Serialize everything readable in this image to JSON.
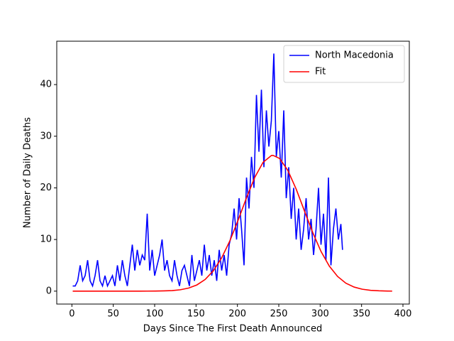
{
  "chart_data": {
    "type": "line",
    "xlabel": "Days Since The First Death Announced",
    "ylabel": "Number of Daily Deaths",
    "xlim": [
      -18.3,
      407.7
    ],
    "ylim": [
      -2.5,
      48.4
    ],
    "xticks": [
      0,
      50,
      100,
      150,
      200,
      250,
      300,
      350,
      400
    ],
    "yticks": [
      0,
      10,
      20,
      30,
      40
    ],
    "legend": "upper right",
    "series": [
      {
        "name": "North Macedonia",
        "color": "#0000ff",
        "x": [
          1,
          4,
          7,
          10,
          13,
          16,
          19,
          22,
          25,
          28,
          31,
          34,
          37,
          40,
          43,
          46,
          49,
          52,
          55,
          58,
          61,
          64,
          67,
          70,
          73,
          76,
          79,
          82,
          85,
          88,
          91,
          94,
          97,
          100,
          103,
          106,
          109,
          112,
          115,
          118,
          121,
          124,
          127,
          130,
          133,
          136,
          139,
          142,
          145,
          148,
          151,
          154,
          157,
          160,
          163,
          166,
          169,
          172,
          175,
          178,
          181,
          184,
          187,
          190,
          193,
          196,
          199,
          202,
          205,
          208,
          211,
          214,
          217,
          220,
          223,
          226,
          229,
          232,
          235,
          238,
          241,
          244,
          247,
          250,
          253,
          256,
          259,
          262,
          265,
          268,
          271,
          274,
          277,
          280,
          283,
          286,
          289,
          292,
          295,
          298,
          301,
          304,
          307,
          310,
          313,
          316,
          319,
          322,
          325,
          327
        ],
        "values": [
          1,
          1,
          2,
          5,
          2,
          3,
          6,
          2,
          1,
          3,
          6,
          2,
          1,
          3,
          1,
          2,
          3,
          1,
          5,
          2,
          6,
          3,
          1,
          5,
          9,
          4,
          8,
          5,
          7,
          6,
          15,
          4,
          8,
          3,
          5,
          7,
          10,
          4,
          6,
          3,
          2,
          6,
          3,
          1,
          4,
          5,
          3,
          1,
          7,
          2,
          4,
          6,
          3,
          9,
          4,
          7,
          3,
          6,
          2,
          8,
          4,
          7,
          3,
          9,
          11,
          16,
          10,
          18,
          12,
          5,
          22,
          16,
          26,
          20,
          38,
          27,
          39,
          24,
          35,
          28,
          33,
          46,
          26,
          31,
          22,
          35,
          18,
          24,
          14,
          20,
          10,
          16,
          8,
          12,
          18,
          10,
          14,
          7,
          12,
          20,
          9,
          15,
          6,
          22,
          5,
          12,
          16,
          10,
          13,
          8
        ]
      },
      {
        "name": "Fit",
        "color": "#ff0000",
        "x": [
          1,
          11,
          21,
          31,
          41,
          51,
          61,
          71,
          81,
          91,
          101,
          111,
          121,
          131,
          141,
          151,
          161,
          171,
          181,
          191,
          201,
          211,
          221,
          231,
          241,
          243,
          251,
          261,
          271,
          281,
          291,
          301,
          311,
          321,
          331,
          341,
          351,
          361,
          371,
          381,
          387
        ],
        "values": [
          0,
          0,
          0,
          0,
          0,
          0,
          0,
          0,
          0,
          0.01,
          0.02,
          0.05,
          0.11,
          0.27,
          0.59,
          1.2,
          2.26,
          3.96,
          6.46,
          9.79,
          13.81,
          18.09,
          22.04,
          24.95,
          26.26,
          26.3,
          25.69,
          23.36,
          19.76,
          15.53,
          11.35,
          7.69,
          4.86,
          2.85,
          1.55,
          0.79,
          0.37,
          0.16,
          0.07,
          0.02,
          0.01
        ]
      }
    ]
  }
}
